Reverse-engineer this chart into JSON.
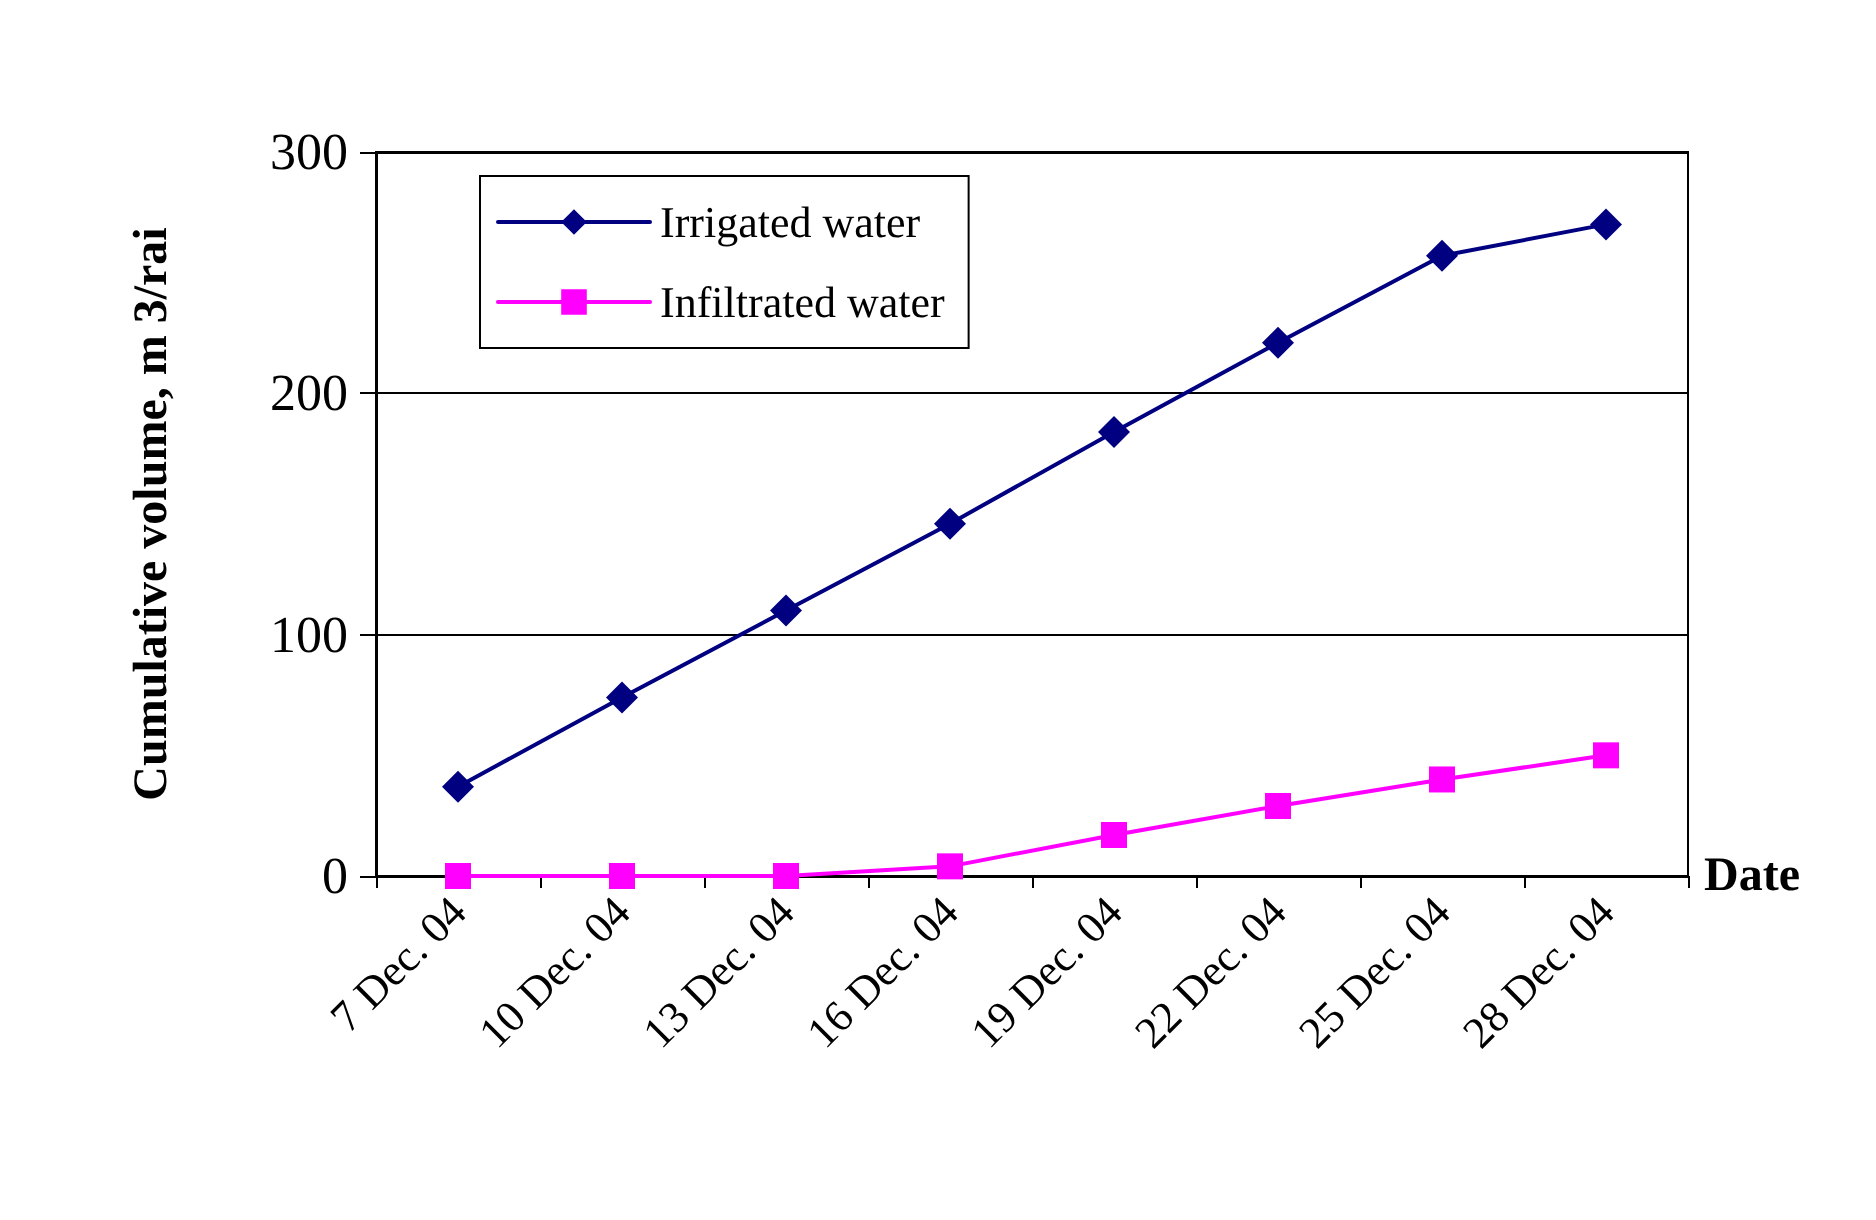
{
  "chart_data": {
    "type": "line",
    "xlabel": "Date",
    "ylabel": "Cumulative volume, m 3/rai",
    "categories": [
      "7 Dec. 04",
      "10 Dec. 04",
      "13 Dec. 04",
      "16 Dec. 04",
      "19 Dec. 04",
      "22 Dec. 04",
      "25 Dec. 04",
      "28 Dec. 04"
    ],
    "series": [
      {
        "name": "Irrigated water",
        "color": "#000080",
        "marker": "diamond",
        "values": [
          37,
          74,
          110,
          146,
          184,
          221,
          257,
          270
        ]
      },
      {
        "name": "Infiltrated water",
        "color": "#ff00ff",
        "marker": "square",
        "values": [
          0,
          0,
          0,
          4,
          17,
          29,
          40,
          50
        ]
      }
    ],
    "ylim": [
      0,
      300
    ],
    "yticks": [
      0,
      100,
      200,
      300
    ],
    "grid": "y",
    "legend": "top left",
    "line_style": "solid"
  }
}
